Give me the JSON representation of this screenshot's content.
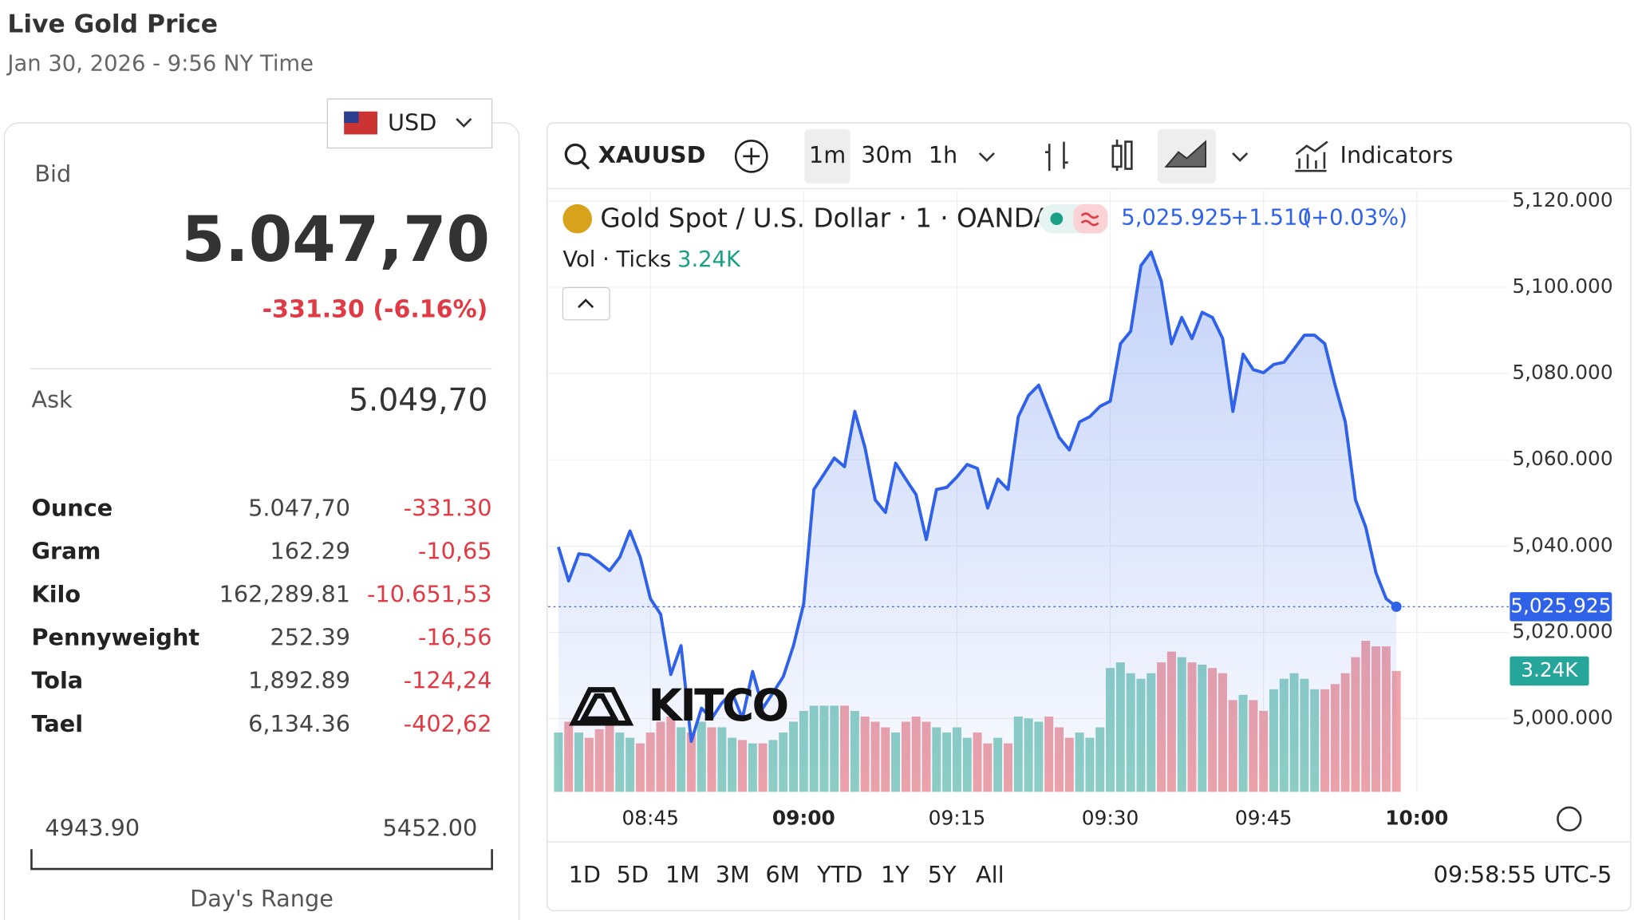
{
  "header": {
    "title": "Live Gold Price",
    "date": "Jan 30, 2026 - 9:56 NY Time"
  },
  "panel": {
    "currency": "USD",
    "bid_label": "Bid",
    "bid": "5.047,70",
    "bid_change": "-331.30 (-6.16%)",
    "ask_label": "Ask",
    "ask": "5.049,70",
    "rows": [
      [
        "Ounce",
        "5.047,70",
        "-331.30"
      ],
      [
        "Gram",
        "162.29",
        "-10,65"
      ],
      [
        "Kilo",
        "162,289.81",
        "-10.651,53"
      ],
      [
        "Pennyweight",
        "252.39",
        "-16,56"
      ],
      [
        "Tola",
        "1,892.89",
        "-124,24"
      ],
      [
        "Tael",
        "6,134.36",
        "-402,62"
      ]
    ],
    "range_low": "4943.90",
    "range_high": "5452.00",
    "range_label": "Day's Range"
  },
  "toolbar": {
    "symbol": "XAUUSD",
    "intervals": [
      "1m",
      "30m",
      "1h"
    ],
    "indicators": "Indicators"
  },
  "legend": {
    "name": "Gold Spot / U.S. Dollar · 1 · OANDA",
    "price": "5,025.925",
    "change": "+1.510",
    "change_pct": "(+0.03%)",
    "vol_label": "Vol · Ticks",
    "vol": "3.24K"
  },
  "watermark": "KITCO",
  "ranges": [
    "1D",
    "5D",
    "1M",
    "3M",
    "6M",
    "YTD",
    "1Y",
    "5Y",
    "All"
  ],
  "clock": "09:58:55 UTC-5",
  "chart": {
    "type": "line",
    "color": "#2f62e8",
    "up_color": "#8fd0c4",
    "down_color": "#f0a3a8",
    "x": [
      "08:36",
      "08:37",
      "08:38",
      "08:39",
      "08:40",
      "08:41",
      "08:42",
      "08:43",
      "08:44",
      "08:45",
      "08:46",
      "08:47",
      "08:48",
      "08:49",
      "08:50",
      "08:51",
      "08:52",
      "08:53",
      "08:54",
      "08:55",
      "08:56",
      "08:57",
      "08:58",
      "08:59",
      "09:00",
      "09:01",
      "09:02",
      "09:03",
      "09:04",
      "09:05",
      "09:06",
      "09:07",
      "09:08",
      "09:09",
      "09:10",
      "09:11",
      "09:12",
      "09:13",
      "09:14",
      "09:15",
      "09:16",
      "09:17",
      "09:18",
      "09:19",
      "09:20",
      "09:21",
      "09:22",
      "09:23",
      "09:24",
      "09:25",
      "09:26",
      "09:27",
      "09:28",
      "09:29",
      "09:30",
      "09:31",
      "09:32",
      "09:33",
      "09:34",
      "09:35",
      "09:36",
      "09:37",
      "09:38",
      "09:39",
      "09:40",
      "09:41",
      "09:42",
      "09:43",
      "09:44",
      "09:45",
      "09:46",
      "09:47",
      "09:48",
      "09:49",
      "09:50",
      "09:51",
      "09:52",
      "09:53",
      "09:54",
      "09:55",
      "09:56",
      "09:57",
      "09:58"
    ],
    "values": [
      5039.8,
      5031.9,
      5038.2,
      5037.9,
      5036.2,
      5034.3,
      5037.4,
      5043.5,
      5037.4,
      5027.8,
      5024.2,
      5010.2,
      5016.9,
      4994.7,
      5002.4,
      5000,
      5003.6,
      5006,
      5000,
      5010.9,
      5002.4,
      5006,
      5009.7,
      5016.9,
      5026.6,
      5053.1,
      5056.7,
      5060.4,
      5058.4,
      5071.2,
      5062.8,
      5050.7,
      5047.8,
      5059.2,
      5055.5,
      5051.9,
      5041.5,
      5053.1,
      5053.6,
      5056,
      5058.9,
      5058,
      5048.8,
      5055.5,
      5053.1,
      5070,
      5074.9,
      5077.3,
      5071.2,
      5065.2,
      5062.3,
      5068.8,
      5070,
      5072.4,
      5073.6,
      5086.9,
      5089.8,
      5105,
      5108.2,
      5101.4,
      5086.9,
      5093,
      5088.1,
      5094.2,
      5093,
      5088.1,
      5071.2,
      5084.5,
      5080.9,
      5080.2,
      5082.1,
      5082.6,
      5085.7,
      5088.9,
      5088.9,
      5086.9,
      5077.3,
      5068.8,
      5050.7,
      5044.4,
      5033.8,
      5027.8,
      5025.925
    ],
    "volume": [
      1.59,
      1.88,
      1.59,
      1.45,
      1.68,
      1.79,
      1.59,
      1.45,
      1.3,
      1.59,
      1.88,
      2.02,
      1.73,
      1.59,
      1.88,
      1.73,
      1.73,
      1.45,
      1.39,
      1.3,
      1.3,
      1.39,
      1.59,
      1.88,
      2.17,
      2.31,
      2.31,
      2.31,
      2.31,
      2.17,
      2.02,
      1.88,
      1.73,
      1.59,
      1.88,
      2.02,
      1.88,
      1.73,
      1.59,
      1.73,
      1.45,
      1.59,
      1.3,
      1.45,
      1.3,
      2.02,
      1.97,
      1.88,
      2.02,
      1.73,
      1.45,
      1.59,
      1.45,
      1.73,
      3.32,
      3.47,
      3.18,
      3.03,
      3.18,
      3.47,
      3.76,
      3.61,
      3.47,
      3.41,
      3.32,
      3.18,
      2.46,
      2.6,
      2.46,
      2.17,
      2.75,
      3.03,
      3.18,
      3.03,
      2.75,
      2.75,
      2.89,
      3.18,
      3.61,
      4.05,
      3.9,
      3.9,
      3.24
    ],
    "last_label": "5,025.925",
    "xlim": [
      "08:35",
      "10:09"
    ],
    "xticks": [
      "08:45",
      "09:00",
      "09:15",
      "09:30",
      "09:45",
      "10:00"
    ],
    "ylim": [
      4983,
      5122.4
    ],
    "yticks": [
      {
        "value": 5000,
        "label": "5,000.000"
      },
      {
        "value": 5020,
        "label": "5,020.000"
      },
      {
        "value": 5040,
        "label": "5,040.000"
      },
      {
        "value": 5060,
        "label": "5,060.000"
      },
      {
        "value": 5080,
        "label": "5,080.000"
      },
      {
        "value": 5100,
        "label": "5,100.000"
      },
      {
        "value": 5120,
        "label": "5,120.000"
      }
    ],
    "grid": true
  }
}
